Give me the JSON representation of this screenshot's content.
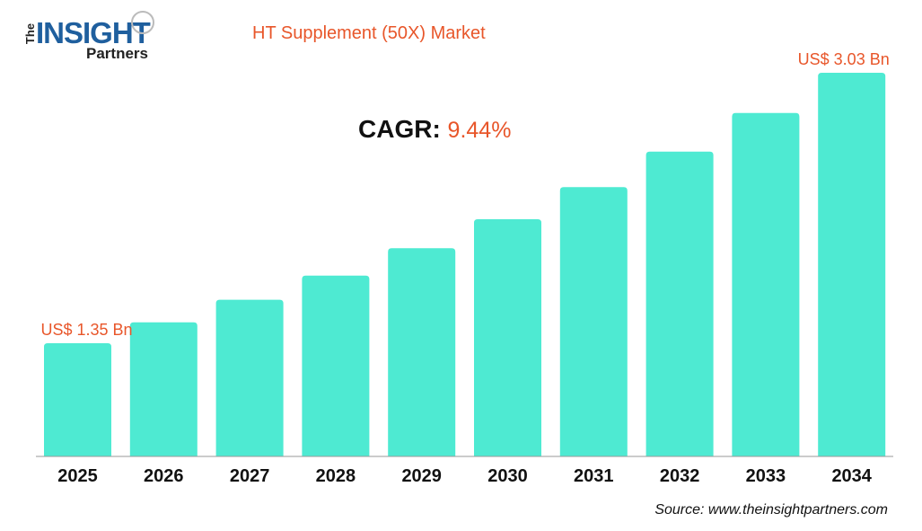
{
  "logo": {
    "the": "The",
    "insight": "INSIGHT",
    "partners": "Partners"
  },
  "title": "HT Supplement (50X) Market",
  "cagr": {
    "label": "CAGR:",
    "value": "9.44%"
  },
  "source": "Source: www.theinsightpartners.com",
  "colors": {
    "bar": "#4eead2",
    "accent": "#e8562a"
  },
  "chart_data": {
    "type": "bar",
    "title": "HT Supplement (50X) Market",
    "categories": [
      "2025",
      "2026",
      "2027",
      "2028",
      "2029",
      "2030",
      "2031",
      "2032",
      "2033",
      "2034"
    ],
    "values": [
      1.35,
      1.48,
      1.62,
      1.77,
      1.94,
      2.12,
      2.32,
      2.54,
      2.78,
      3.03
    ],
    "unit": "US$ Bn",
    "data_labels": [
      {
        "category": "2025",
        "text": "US$ 1.35 Bn"
      },
      {
        "category": "2034",
        "text": "US$ 3.03 Bn"
      }
    ],
    "grid": false,
    "legend": "none"
  }
}
